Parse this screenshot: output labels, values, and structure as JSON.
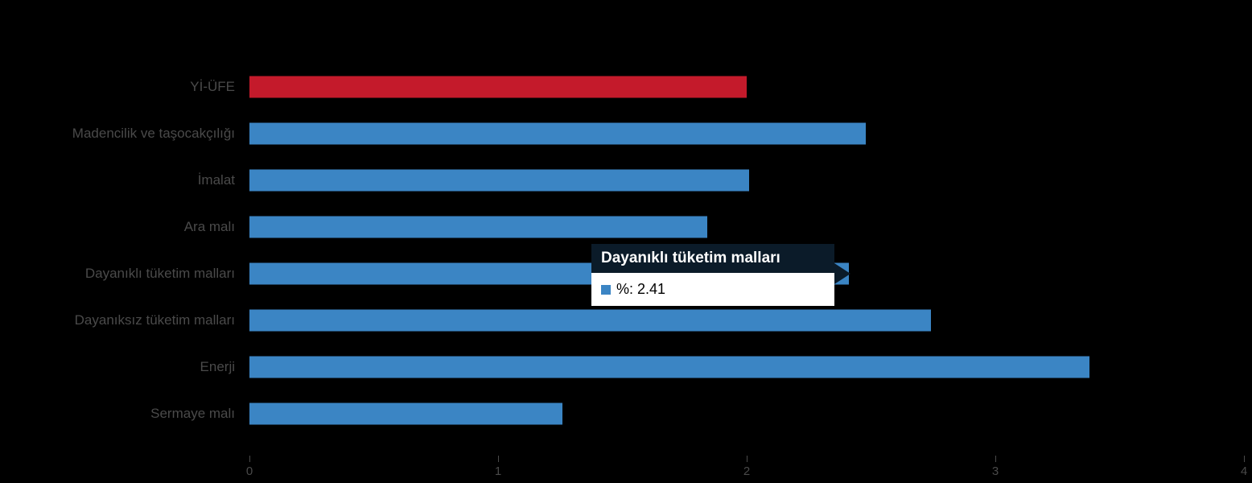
{
  "chart": {
    "background": "#000000",
    "label_color": "#4a4a4a",
    "bar_color": "#3b85c4",
    "highlight_color": "#c41a2b"
  },
  "tooltip": {
    "title": "Dayanıklı tüketim malları",
    "label": "%: 2.41",
    "header_bg": "#0b1b29",
    "body_bg": "#ffffff",
    "marker_color": "#3b85c4"
  },
  "chart_data": {
    "type": "bar",
    "orientation": "horizontal",
    "title": "",
    "xlabel": "",
    "ylabel": "",
    "categories": [
      "Yİ-ÜFE",
      "Madencilik ve taşocakçılığı",
      "İmalat",
      "Ara malı",
      "Dayanıklı tüketim malları",
      "Dayanıksız tüketim malları",
      "Enerji",
      "Sermaye malı"
    ],
    "series": [
      {
        "name": "%",
        "values": [
          2.0,
          2.48,
          2.01,
          1.84,
          2.41,
          2.74,
          3.38,
          1.26
        ]
      }
    ],
    "bar_colors": [
      "#c41a2b",
      "#3b85c4",
      "#3b85c4",
      "#3b85c4",
      "#3b85c4",
      "#3b85c4",
      "#3b85c4",
      "#3b85c4"
    ],
    "xlim": [
      0,
      4
    ],
    "xticks": [
      0,
      1,
      2,
      3,
      4
    ],
    "grid": false,
    "legend": false,
    "highlighted_point": {
      "category": "Dayanıklı tüketim malları",
      "value": 2.41
    }
  }
}
